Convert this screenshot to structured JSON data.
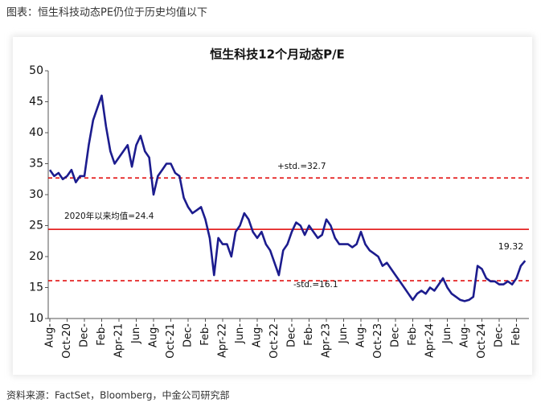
{
  "header": "图表：恒生科技动态PE仍位于历史均值以下",
  "source": "资料来源：FactSet，Bloomberg，中金公司研究部",
  "chart_data": {
    "type": "line",
    "title": "恒生科技12个月动态P/E",
    "categories": [
      "Aug-",
      null,
      null,
      null,
      "Oct-20",
      null,
      null,
      null,
      "Dec-",
      null,
      null,
      null,
      "Feb-",
      null,
      null,
      null,
      "Apr-21",
      null,
      null,
      null,
      "Jun-",
      null,
      null,
      null,
      "Aug-",
      null,
      null,
      null,
      "Oct-21",
      null,
      null,
      null,
      "Dec-",
      null,
      null,
      null,
      "Feb-",
      null,
      null,
      null,
      "Apr-22",
      null,
      null,
      null,
      "Jun-",
      null,
      null,
      null,
      "Aug-",
      null,
      null,
      null,
      "Oct-22",
      null,
      null,
      null,
      "Dec-",
      null,
      null,
      null,
      "Feb-",
      null,
      null,
      null,
      "Apr-23",
      null,
      null,
      null,
      "Jun-",
      null,
      null,
      null,
      "Aug-",
      null,
      null,
      null,
      "Oct-23",
      null,
      null,
      null,
      "Dec-",
      null,
      null,
      null,
      "Feb-",
      null,
      null,
      null,
      "Apr-24",
      null,
      null,
      null,
      "Jun-",
      null,
      null,
      null,
      "Aug-",
      null,
      null,
      null,
      "Oct-24",
      null,
      null,
      null,
      "Dec-",
      null,
      null,
      null,
      "Feb-",
      null,
      null
    ],
    "series": [
      {
        "color": "#1c1c8e",
        "values": [
          34,
          33,
          33.5,
          32.5,
          33,
          34,
          32,
          33,
          33,
          38,
          42,
          44,
          46,
          41,
          37,
          35,
          36,
          37,
          38,
          34.5,
          38,
          39.5,
          37,
          36,
          30,
          33,
          34,
          35,
          35,
          33.5,
          33,
          29.5,
          28,
          27,
          27.5,
          28,
          26,
          23,
          17,
          23,
          22,
          22,
          20,
          24,
          25,
          27,
          26,
          24,
          23,
          24,
          22,
          21,
          19,
          17,
          21,
          22,
          24,
          25.5,
          25,
          23.5,
          25,
          24,
          23,
          23.5,
          26,
          25,
          23,
          22,
          22,
          22,
          21.5,
          22,
          24,
          22,
          21,
          20.5,
          20,
          18.5,
          19,
          18,
          17,
          16,
          15,
          14,
          13,
          14,
          14.5,
          14,
          15,
          14.5,
          15.5,
          16.5,
          15,
          14,
          13.5,
          13,
          12.8,
          13,
          13.5,
          18.5,
          18,
          16.5,
          16,
          16,
          15.5,
          15.5,
          16,
          15.5,
          16.5,
          18.5,
          19.32
        ]
      }
    ],
    "ylim": [
      10,
      50
    ],
    "yticks": [
      10,
      15,
      20,
      25,
      30,
      35,
      40,
      45,
      50
    ],
    "reference_lines": [
      {
        "value": 32.7,
        "label": "+std.=32.7",
        "style": "dashed",
        "color": "#e00000"
      },
      {
        "value": 24.4,
        "label": "2020年以来均值=24.4",
        "style": "solid",
        "color": "#e00000"
      },
      {
        "value": 16.1,
        "label": "-std.=16.1",
        "style": "dashed",
        "color": "#e00000"
      }
    ]
  }
}
